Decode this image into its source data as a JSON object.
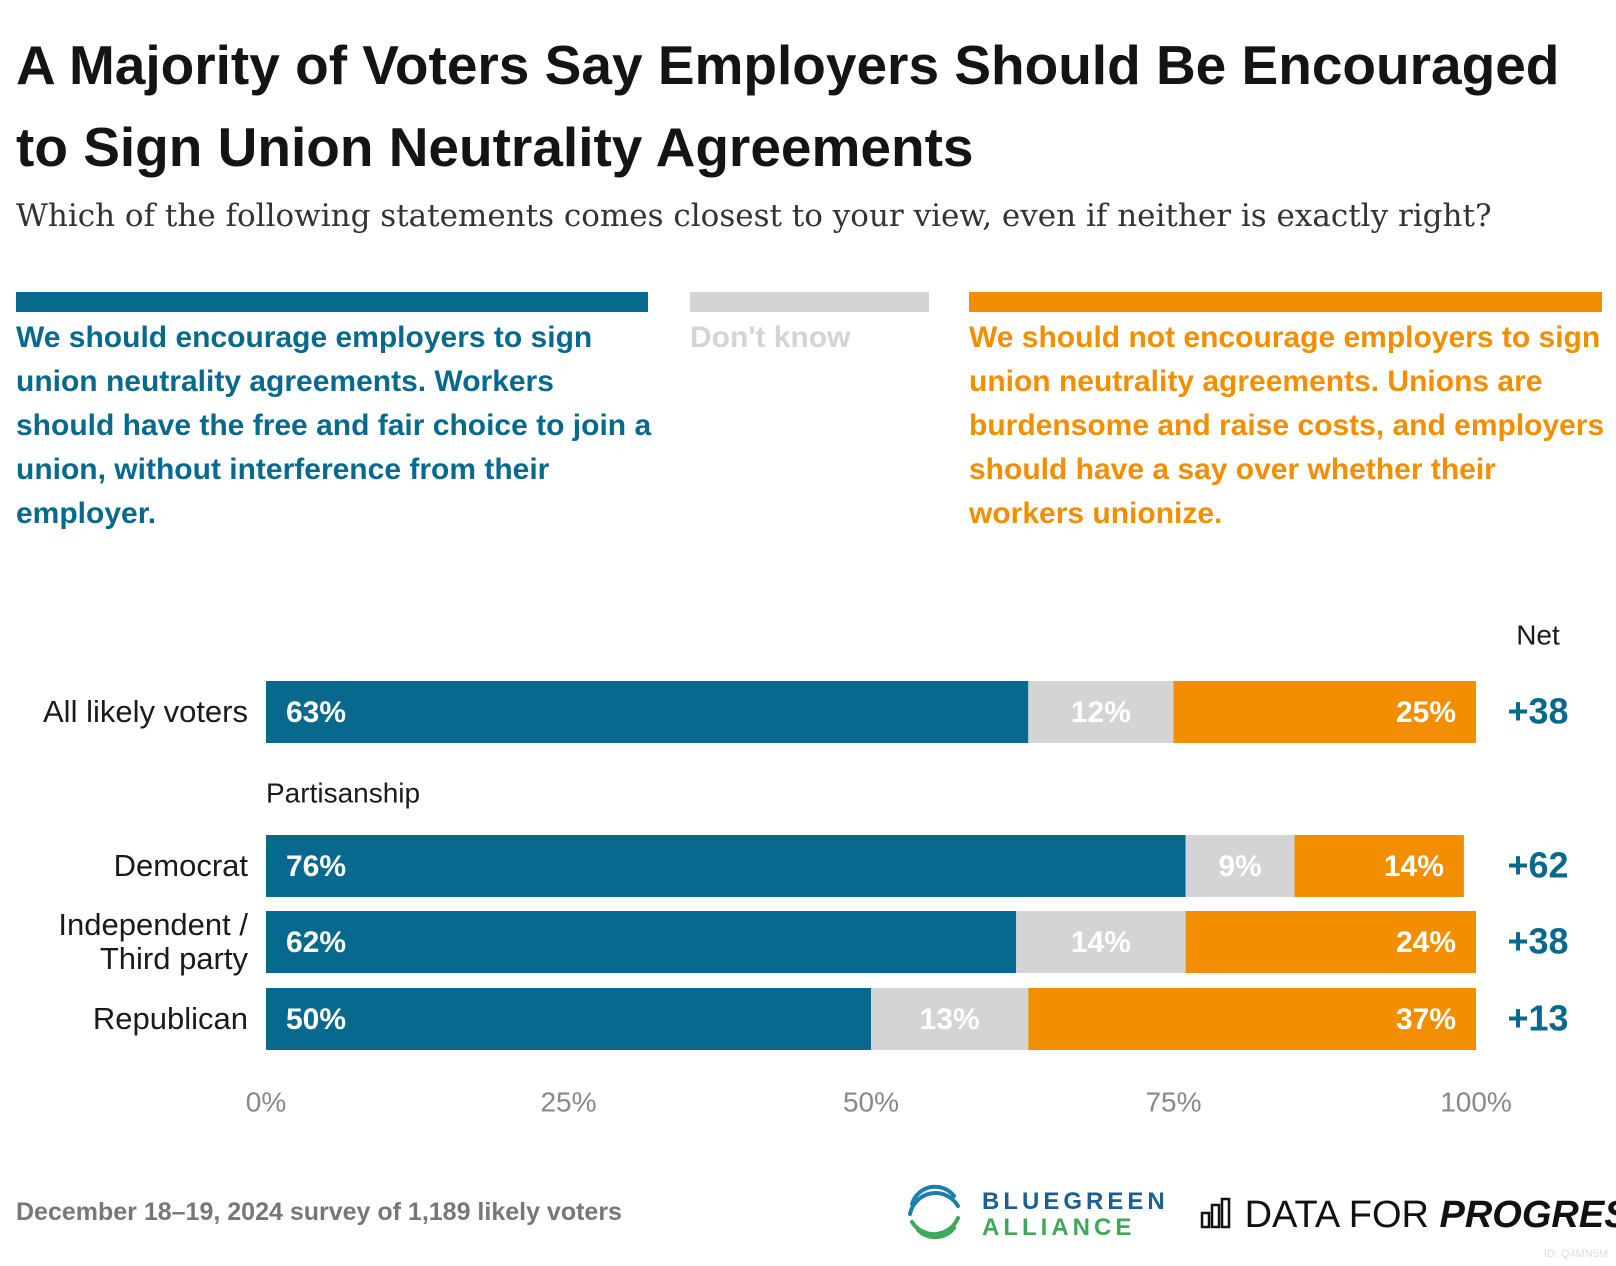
{
  "chart_data": {
    "type": "bar",
    "orientation": "horizontal",
    "stacked": true,
    "title": "A Majority of Voters Say Employers Should Be Encouraged to Sign Union Neutrality Agreements",
    "subtitle": "Which of the following statements comes closest to your view, even if neither is exactly right?",
    "categories": [
      "All likely voters",
      "Democrat",
      "Independent / Third party",
      "Republican"
    ],
    "group_label": "Partisanship",
    "series": [
      {
        "name": "We should encourage employers to sign union neutrality agreements. Workers should have the free and fair choice to join a union, without interference from their employer.",
        "color": "#08698e",
        "values": [
          63,
          76,
          62,
          50
        ],
        "value_labels": [
          "63%",
          "76%",
          "62%",
          "50%"
        ]
      },
      {
        "name": "Don't know",
        "color": "#d4d4d6",
        "values": [
          12,
          9,
          14,
          13
        ],
        "value_labels": [
          "12%",
          "9%",
          "14%",
          "13%"
        ]
      },
      {
        "name": "We should not encourage employers to sign union neutrality agreements. Unions are burdensome and raise costs, and employers should have a say over whether their workers unionize.",
        "color": "#f28e00",
        "values": [
          25,
          14,
          24,
          37
        ],
        "value_labels": [
          "25%",
          "14%",
          "24%",
          "37%"
        ]
      }
    ],
    "net": {
      "label": "Net",
      "color": "#08698e",
      "values": [
        38,
        62,
        38,
        13
      ],
      "value_labels": [
        "+38",
        "+62",
        "+38",
        "+13"
      ]
    },
    "xlim": [
      0,
      100
    ],
    "xticks": [
      {
        "value": 0,
        "label": "0%"
      },
      {
        "value": 25,
        "label": "25%"
      },
      {
        "value": 50,
        "label": "50%"
      },
      {
        "value": 75,
        "label": "75%"
      },
      {
        "value": 100,
        "label": "100%"
      }
    ]
  },
  "footer": {
    "note": "December 18–19, 2024 survey of 1,189 likely voters",
    "logo_1_top": "BLUEGREEN",
    "logo_1_bottom": "ALLIANCE",
    "logo_2_a": "DATA FOR",
    "logo_2_b": "PROGRESS",
    "id": "ID: Q4MN5M"
  }
}
